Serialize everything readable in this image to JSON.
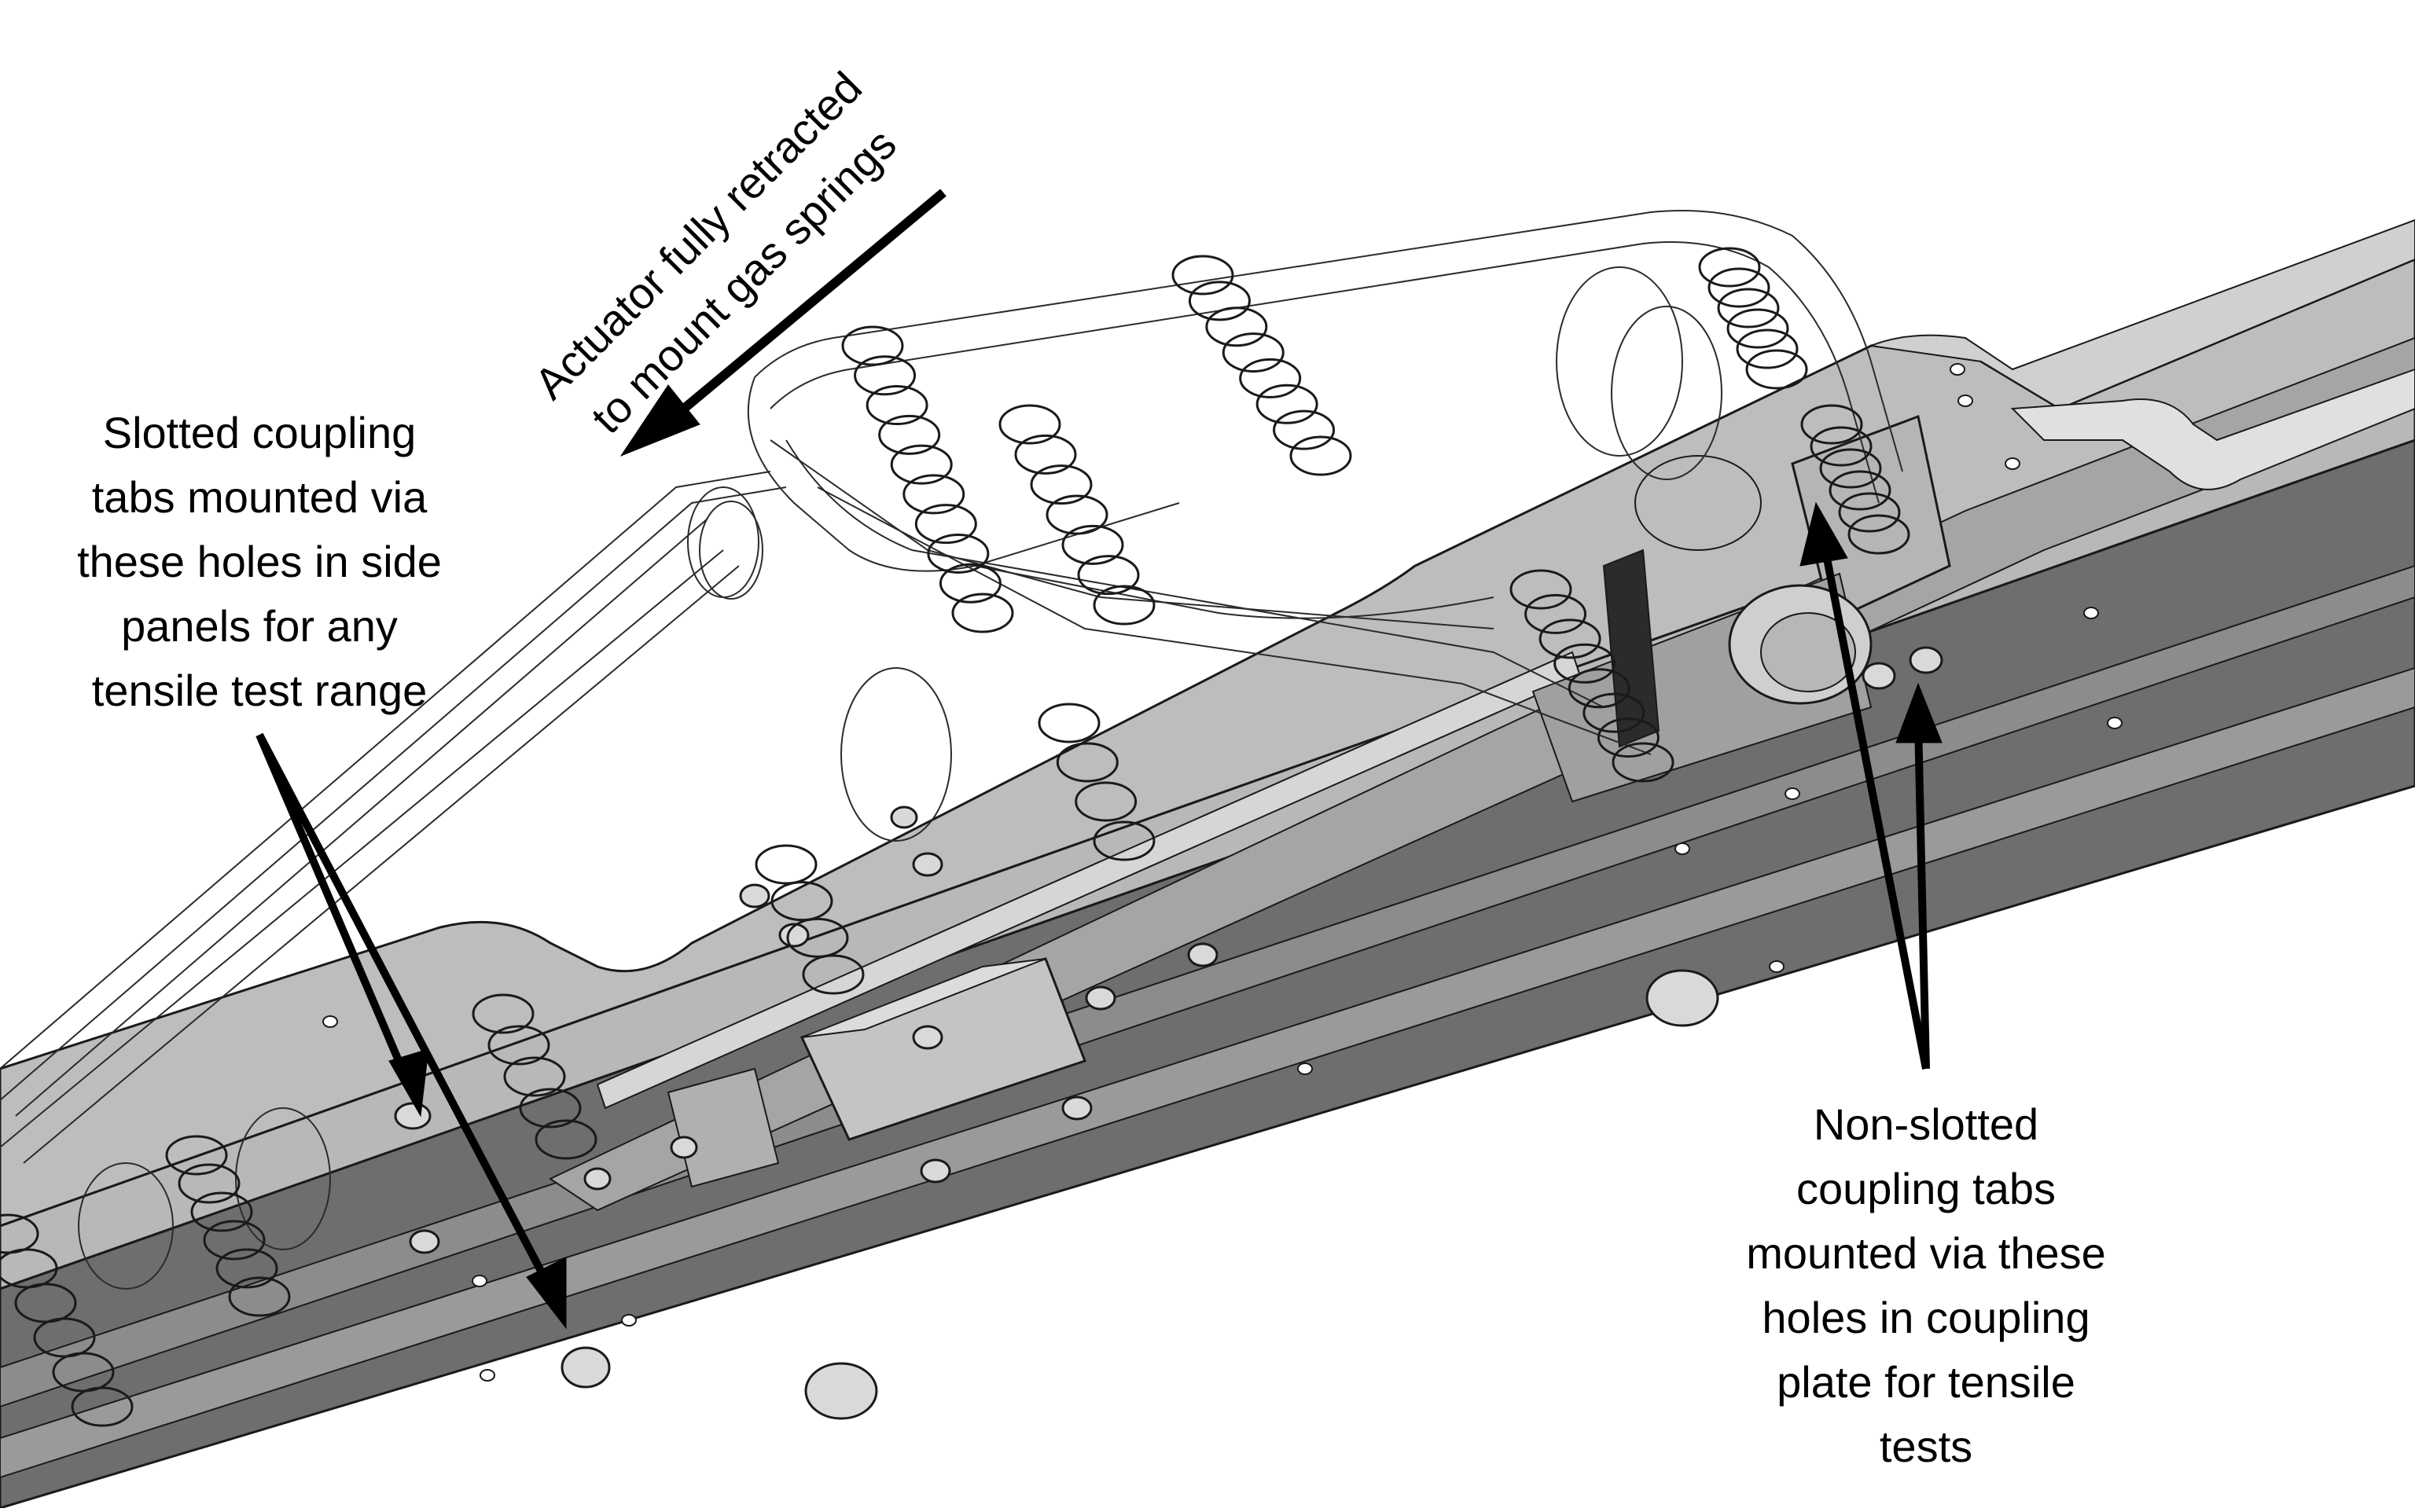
{
  "annotations": {
    "actuator": {
      "lines": [
        "Actuator fully retracted",
        "to mount gas springs"
      ]
    },
    "slotted": {
      "lines": [
        "Slotted coupling",
        "tabs mounted via",
        "these holes in side",
        "panels for any",
        "tensile test range"
      ]
    },
    "nonslotted": {
      "lines": [
        "Non-slotted",
        "coupling tabs",
        "mounted via these",
        "holes in coupling",
        "plate for tensile",
        "tests"
      ]
    }
  },
  "colors": {
    "background": "#ffffff",
    "panel_dark": "#6e6e6e",
    "panel_mid": "#8c8c8c",
    "panel_light": "#b8b8b8",
    "panel_face": "#c9c9c9",
    "edge": "#1a1a1a",
    "wire": "#2b2b2b",
    "arrow": "#000000"
  },
  "icons": [
    "arrow-pointer",
    "gas-spring-wireframe",
    "bolt-head"
  ]
}
